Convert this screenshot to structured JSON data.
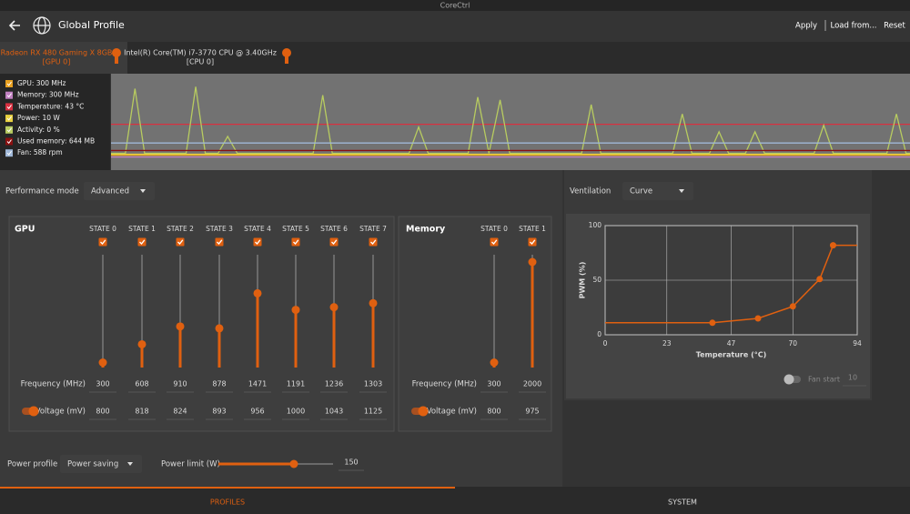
{
  "window_title": "CoreCtrl",
  "header": {
    "title": "Global Profile",
    "actions": [
      "Apply",
      "Load from...",
      "Reset"
    ]
  },
  "device_tabs": [
    {
      "lines": [
        "Radeon RX 480 Gaming X 8GB",
        "[GPU 0]"
      ],
      "active": true
    },
    {
      "lines": [
        "Intel(R) Core(TM) i7-3770 CPU @ 3.40GHz",
        "[CPU 0]"
      ],
      "active": false
    }
  ],
  "chart_data": [
    {
      "type": "line",
      "xlim": [
        0,
        100
      ],
      "ylim": [
        0,
        100
      ],
      "series": [
        {
          "name": "GPU: 300 MHz",
          "color": "#e8a020",
          "x": [
            0,
            100
          ],
          "values": [
            14,
            14
          ]
        },
        {
          "name": "Memory: 300 MHz",
          "color": "#c080c0",
          "x": [
            0,
            100
          ],
          "values": [
            12,
            12
          ]
        },
        {
          "name": "Temperature: 43 °C",
          "color": "#d83040",
          "x": [
            0,
            100
          ],
          "values": [
            47,
            47
          ]
        },
        {
          "name": "Power: 10 W",
          "color": "#e8d040",
          "x": [
            0,
            100
          ],
          "values": [
            15,
            15
          ]
        },
        {
          "name": "Activity: 0 %",
          "color": "#b8cc60",
          "x": [
            0,
            1.8,
            3,
            4.2,
            9.4,
            10.6,
            11.8,
            13.4,
            14.6,
            15.8,
            25.3,
            26.5,
            27.7,
            37.3,
            38.5,
            39.7,
            44.7,
            45.9,
            47.3,
            48.7,
            49.9,
            58.9,
            60.1,
            61.3,
            70.3,
            71.5,
            72.7,
            74.9,
            76.1,
            77.3,
            79.4,
            80.6,
            81.8,
            88,
            89.2,
            90.4,
            97.1,
            98.3,
            99.5,
            100
          ],
          "values": [
            16,
            16,
            85,
            16,
            16,
            87,
            16,
            16,
            34,
            16,
            16,
            78,
            16,
            16,
            44,
            16,
            16,
            76,
            16,
            73,
            16,
            16,
            68,
            16,
            16,
            58,
            16,
            16,
            39,
            16,
            16,
            39,
            16,
            16,
            46,
            16,
            16,
            58,
            16,
            16
          ]
        },
        {
          "name": "Used memory: 644 MB",
          "color": "#8a1010",
          "x": [
            0,
            100
          ],
          "values": [
            19,
            19
          ]
        },
        {
          "name": "Fan: 588 rpm",
          "color": "#a0b8d8",
          "x": [
            0,
            100
          ],
          "values": [
            27,
            27
          ]
        }
      ]
    },
    {
      "type": "line",
      "xlabel": "Temperature (°C)",
      "ylabel": "PWM (%)",
      "color": "#e06010",
      "xlim": [
        0,
        94
      ],
      "ylim": [
        0,
        100
      ],
      "xticks": [
        0,
        23,
        47,
        70,
        94
      ],
      "yticks": [
        0,
        50,
        100
      ],
      "grid": true,
      "x": [
        40,
        57,
        70,
        80,
        85
      ],
      "values": [
        11,
        15,
        26,
        51,
        82
      ]
    }
  ],
  "performance_mode": {
    "label": "Performance mode",
    "value": "Advanced"
  },
  "gpu": {
    "title": "GPU",
    "states": [
      "STATE 0",
      "STATE 1",
      "STATE 2",
      "STATE 3",
      "STATE 4",
      "STATE 5",
      "STATE 6",
      "STATE 7"
    ],
    "frequency_label": "Frequency (MHz)",
    "frequencies": [
      300,
      608,
      910,
      878,
      1471,
      1191,
      1236,
      1303
    ],
    "voltage_label": "Voltage (mV)",
    "voltages": [
      800,
      818,
      824,
      893,
      956,
      1000,
      1043,
      1125
    ]
  },
  "memory": {
    "title": "Memory",
    "states": [
      "STATE 0",
      "STATE 1"
    ],
    "frequency_label": "Frequency (MHz)",
    "frequencies": [
      300,
      2000
    ],
    "voltage_label": "Voltage (mV)",
    "voltages": [
      800,
      975
    ]
  },
  "power": {
    "profile_label": "Power profile",
    "profile_value": "Power saving",
    "limit_label": "Power limit (W)",
    "limit": 150
  },
  "ventilation": {
    "label": "Ventilation",
    "value": "Curve",
    "fan_start_label": "Fan start",
    "fan_start": 10
  },
  "bottom_tabs": [
    "PROFILES",
    "SYSTEM"
  ]
}
